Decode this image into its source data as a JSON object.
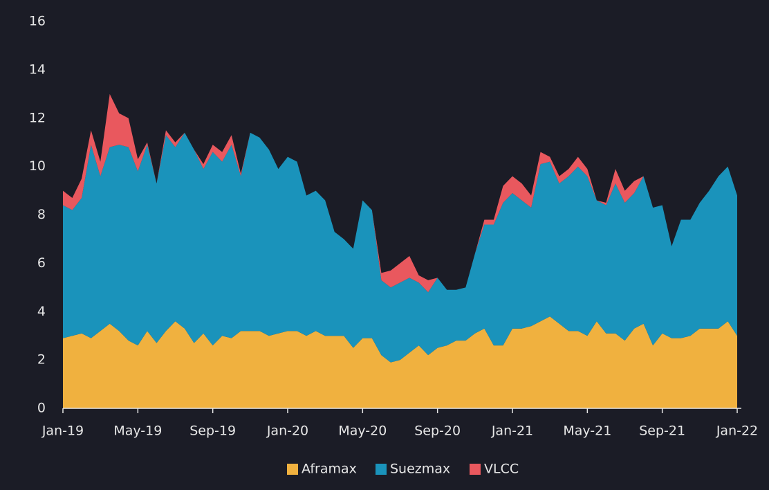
{
  "chart_data": {
    "type": "stacked-area",
    "categories": [
      "Jan-19",
      null,
      null,
      null,
      null,
      null,
      null,
      null,
      "May-19",
      null,
      null,
      null,
      null,
      null,
      null,
      null,
      "Sep-19",
      null,
      null,
      null,
      null,
      null,
      null,
      null,
      "Jan-20",
      null,
      null,
      null,
      null,
      null,
      null,
      null,
      "May-20",
      null,
      null,
      null,
      null,
      null,
      null,
      null,
      "Sep-20",
      null,
      null,
      null,
      null,
      null,
      null,
      null,
      "Jan-21",
      null,
      null,
      null,
      null,
      null,
      null,
      null,
      "May-21",
      null,
      null,
      null,
      null,
      null,
      null,
      null,
      "Sep-21",
      null,
      null,
      null,
      null,
      null,
      null,
      null,
      "Jan-22"
    ],
    "series": [
      {
        "name": "Aframax",
        "color": "#f0b13f",
        "values": [
          2.9,
          3.0,
          3.1,
          2.9,
          3.2,
          3.5,
          3.2,
          2.8,
          2.6,
          3.2,
          2.7,
          3.2,
          3.6,
          3.3,
          2.7,
          3.1,
          2.6,
          3.0,
          2.9,
          3.2,
          3.2,
          3.2,
          3.0,
          3.1,
          3.2,
          3.2,
          3.0,
          3.2,
          3.0,
          3.0,
          3.0,
          2.5,
          2.9,
          2.9,
          2.2,
          1.9,
          2.0,
          2.3,
          2.6,
          2.2,
          2.5,
          2.6,
          2.8,
          2.8,
          3.1,
          3.3,
          2.6,
          2.6,
          3.3,
          3.3,
          3.4,
          3.6,
          3.8,
          3.5,
          3.2,
          3.2,
          3.0,
          3.6,
          3.1,
          3.1,
          2.8,
          3.3,
          3.5,
          2.6,
          3.1,
          2.9,
          2.9,
          3.0,
          3.3,
          3.3,
          3.3,
          3.6,
          3.0
        ]
      },
      {
        "name": "Suezmax",
        "color": "#1a93bb",
        "values": [
          5.5,
          5.2,
          5.6,
          8.0,
          6.4,
          7.3,
          7.7,
          8.0,
          7.2,
          7.7,
          6.6,
          8.1,
          7.2,
          8.1,
          8.0,
          6.8,
          8.0,
          7.2,
          8.0,
          6.4,
          8.2,
          8.0,
          7.7,
          6.8,
          7.2,
          7.0,
          5.8,
          5.8,
          5.6,
          4.3,
          4.0,
          4.1,
          5.7,
          5.3,
          3.1,
          3.1,
          3.2,
          3.1,
          2.6,
          2.6,
          2.9,
          2.3,
          2.1,
          2.2,
          3.3,
          4.3,
          5.0,
          5.9,
          5.6,
          5.3,
          4.9,
          6.5,
          6.4,
          5.8,
          6.4,
          6.8,
          6.6,
          5.0,
          5.3,
          6.2,
          5.7,
          5.6,
          6.1,
          5.7,
          5.3,
          3.8,
          4.9,
          4.8,
          5.2,
          5.7,
          6.3,
          6.4,
          5.8
        ]
      },
      {
        "name": "VLCC",
        "color": "#e9585e",
        "values": [
          0.6,
          0.5,
          0.8,
          0.6,
          0.6,
          2.2,
          1.3,
          1.2,
          0.5,
          0.1,
          0,
          0.2,
          0.2,
          0,
          0,
          0.2,
          0.3,
          0.4,
          0.4,
          0.1,
          0,
          0,
          0,
          0,
          0,
          0,
          0,
          0,
          0,
          0,
          0,
          0,
          0,
          0,
          0.3,
          0.7,
          0.8,
          0.9,
          0.3,
          0.5,
          0,
          0,
          0,
          0,
          0,
          0.2,
          0.2,
          0.7,
          0.7,
          0.7,
          0.5,
          0.5,
          0.2,
          0.3,
          0.3,
          0.4,
          0.3,
          0,
          0.1,
          0.6,
          0.5,
          0.5,
          0,
          0,
          0,
          0,
          0,
          0,
          0,
          0,
          0,
          0,
          0
        ]
      }
    ],
    "ylim": [
      0,
      16
    ],
    "yticks": [
      0,
      2,
      4,
      6,
      8,
      10,
      12,
      14,
      16
    ]
  }
}
